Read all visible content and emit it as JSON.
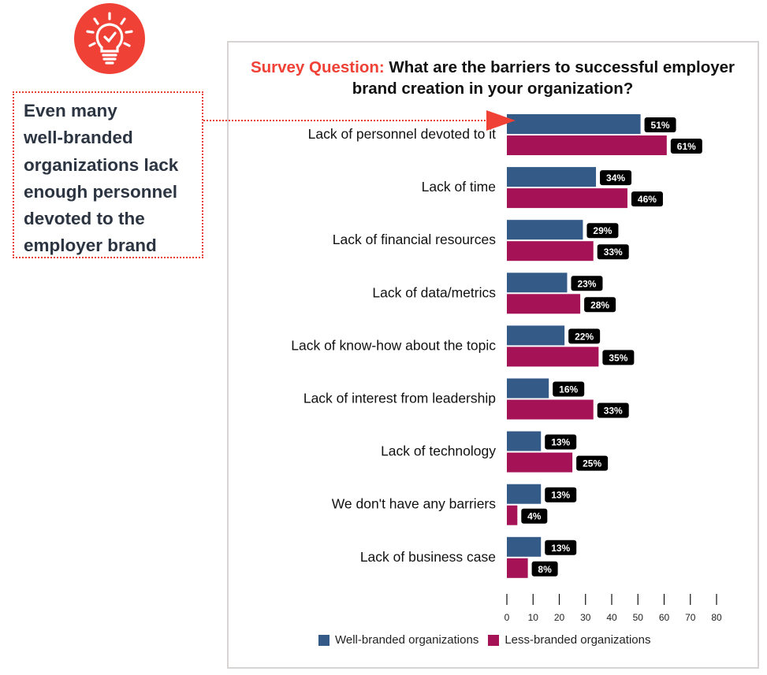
{
  "icon": "lightbulb-check-icon",
  "callout": {
    "lines": [
      "Even many",
      "well-branded",
      "organizations lack",
      "enough personnel",
      "devoted to the",
      "employer brand"
    ]
  },
  "colors": {
    "accent": "#ef4136",
    "well_branded": "#345a88",
    "less_branded": "#a51256",
    "label_bg": "#000000"
  },
  "chart_data": {
    "type": "bar",
    "orientation": "horizontal",
    "title_prefix": "Survey Question:",
    "title": "What are the barriers to successful employer brand creation in your organization?",
    "categories": [
      "Lack of personnel devoted to it",
      "Lack of time",
      "Lack of financial resources",
      "Lack of data/metrics",
      "Lack of know-how about the topic",
      "Lack of interest from leadership",
      "Lack of technology",
      "We don't have any barriers",
      "Lack of business case"
    ],
    "series": [
      {
        "name": "Well-branded organizations",
        "values": [
          51,
          34,
          29,
          23,
          22,
          16,
          13,
          13,
          13
        ]
      },
      {
        "name": "Less-branded organizations",
        "values": [
          61,
          46,
          33,
          28,
          35,
          33,
          25,
          4,
          8
        ]
      }
    ],
    "value_suffix": "%",
    "xlim": [
      0,
      80
    ],
    "xticks": [
      "0",
      "10",
      "20",
      "30",
      "40",
      "50",
      "60",
      "70",
      "80"
    ],
    "legend_position": "bottom",
    "grid": false
  }
}
